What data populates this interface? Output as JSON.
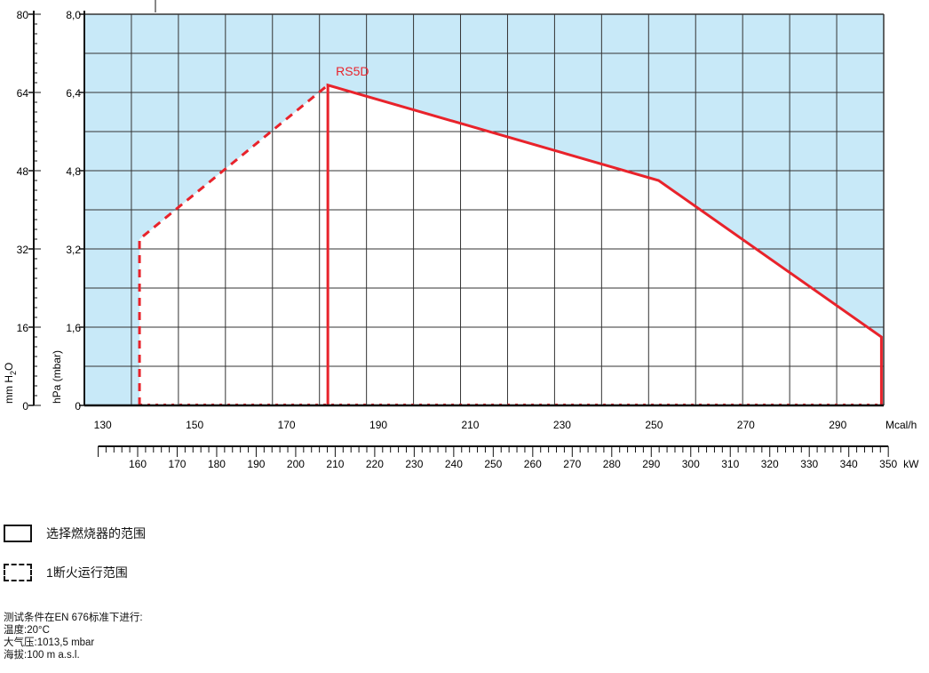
{
  "chart_data": {
    "type": "area",
    "series": [
      {
        "name": "RS5D",
        "x": [
          179,
          179,
          251,
          299.5,
          299.5
        ],
        "y": [
          0,
          6.55,
          4.6,
          1.4,
          0
        ]
      },
      {
        "x": [
          138,
          138,
          179
        ],
        "y": [
          0,
          3.4,
          6.55
        ]
      }
    ],
    "x_ticks": [
      130,
      150,
      170,
      190,
      210,
      230,
      250,
      270,
      290
    ],
    "x_unit": "Mcal/h",
    "xlim": [
      126,
      300
    ],
    "y_ticks": [
      "0",
      "1,6",
      "3,2",
      "4,8",
      "6,4",
      "8,0"
    ],
    "ylabel": "hPa (mbar)",
    "ylim": [
      0,
      8
    ],
    "y2_ticks": [
      0,
      16,
      32,
      48,
      64,
      80
    ],
    "y2label": "mm H2O",
    "y2lim": [
      0,
      80
    ],
    "x2_ticks": [
      160,
      170,
      180,
      190,
      200,
      210,
      220,
      230,
      240,
      250,
      260,
      270,
      280,
      290,
      300,
      310,
      320,
      330,
      340,
      350
    ],
    "x2_unit": "kW",
    "grid": true,
    "colors": {
      "curve": "#e8232b",
      "region": "#c8e9f8",
      "grid": "#333333"
    }
  },
  "legend": {
    "solid_label": "选择燃烧器的范围",
    "dashed_label": "1断火运行范围"
  },
  "notes": [
    "测试条件在EN 676标准下进行:",
    "温度:20°C",
    "大气压:1013,5 mbar",
    "海拔:100 m a.s.l."
  ]
}
